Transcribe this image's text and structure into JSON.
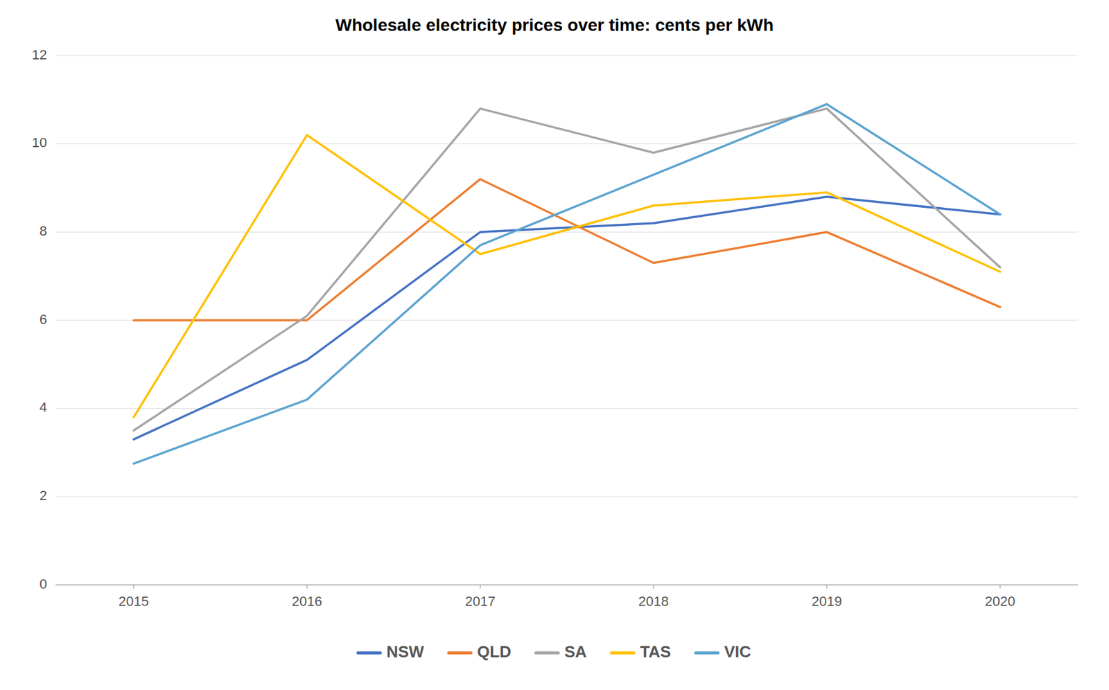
{
  "chart_data": {
    "type": "line",
    "title": "Wholesale electricity prices over time: cents per kWh",
    "x": [
      2015,
      2016,
      2017,
      2018,
      2019,
      2020
    ],
    "series": [
      {
        "name": "NSW",
        "color": "#4472C4",
        "values": [
          3.3,
          5.1,
          8.0,
          8.2,
          8.8,
          8.4
        ]
      },
      {
        "name": "QLD",
        "color": "#ED7D31",
        "values": [
          6.0,
          6.0,
          9.2,
          7.3,
          8.0,
          6.3
        ]
      },
      {
        "name": "SA",
        "color": "#A5A5A5",
        "values": [
          3.5,
          6.1,
          10.8,
          9.8,
          10.8,
          7.2
        ]
      },
      {
        "name": "TAS",
        "color": "#FFC000",
        "values": [
          3.8,
          10.2,
          7.5,
          8.6,
          8.9,
          7.1
        ]
      },
      {
        "name": "VIC",
        "color": "#5BA3D0",
        "values": [
          2.75,
          4.2,
          7.7,
          9.3,
          10.9,
          8.4
        ]
      }
    ],
    "xlim": [
      2014.55,
      2020.45
    ],
    "xticks": [
      2015,
      2016,
      2017,
      2018,
      2019,
      2020
    ],
    "ylim": [
      0,
      12
    ],
    "yticks": [
      0,
      2,
      4,
      6,
      8,
      10,
      12
    ],
    "grid": true,
    "legend": "bottom"
  }
}
